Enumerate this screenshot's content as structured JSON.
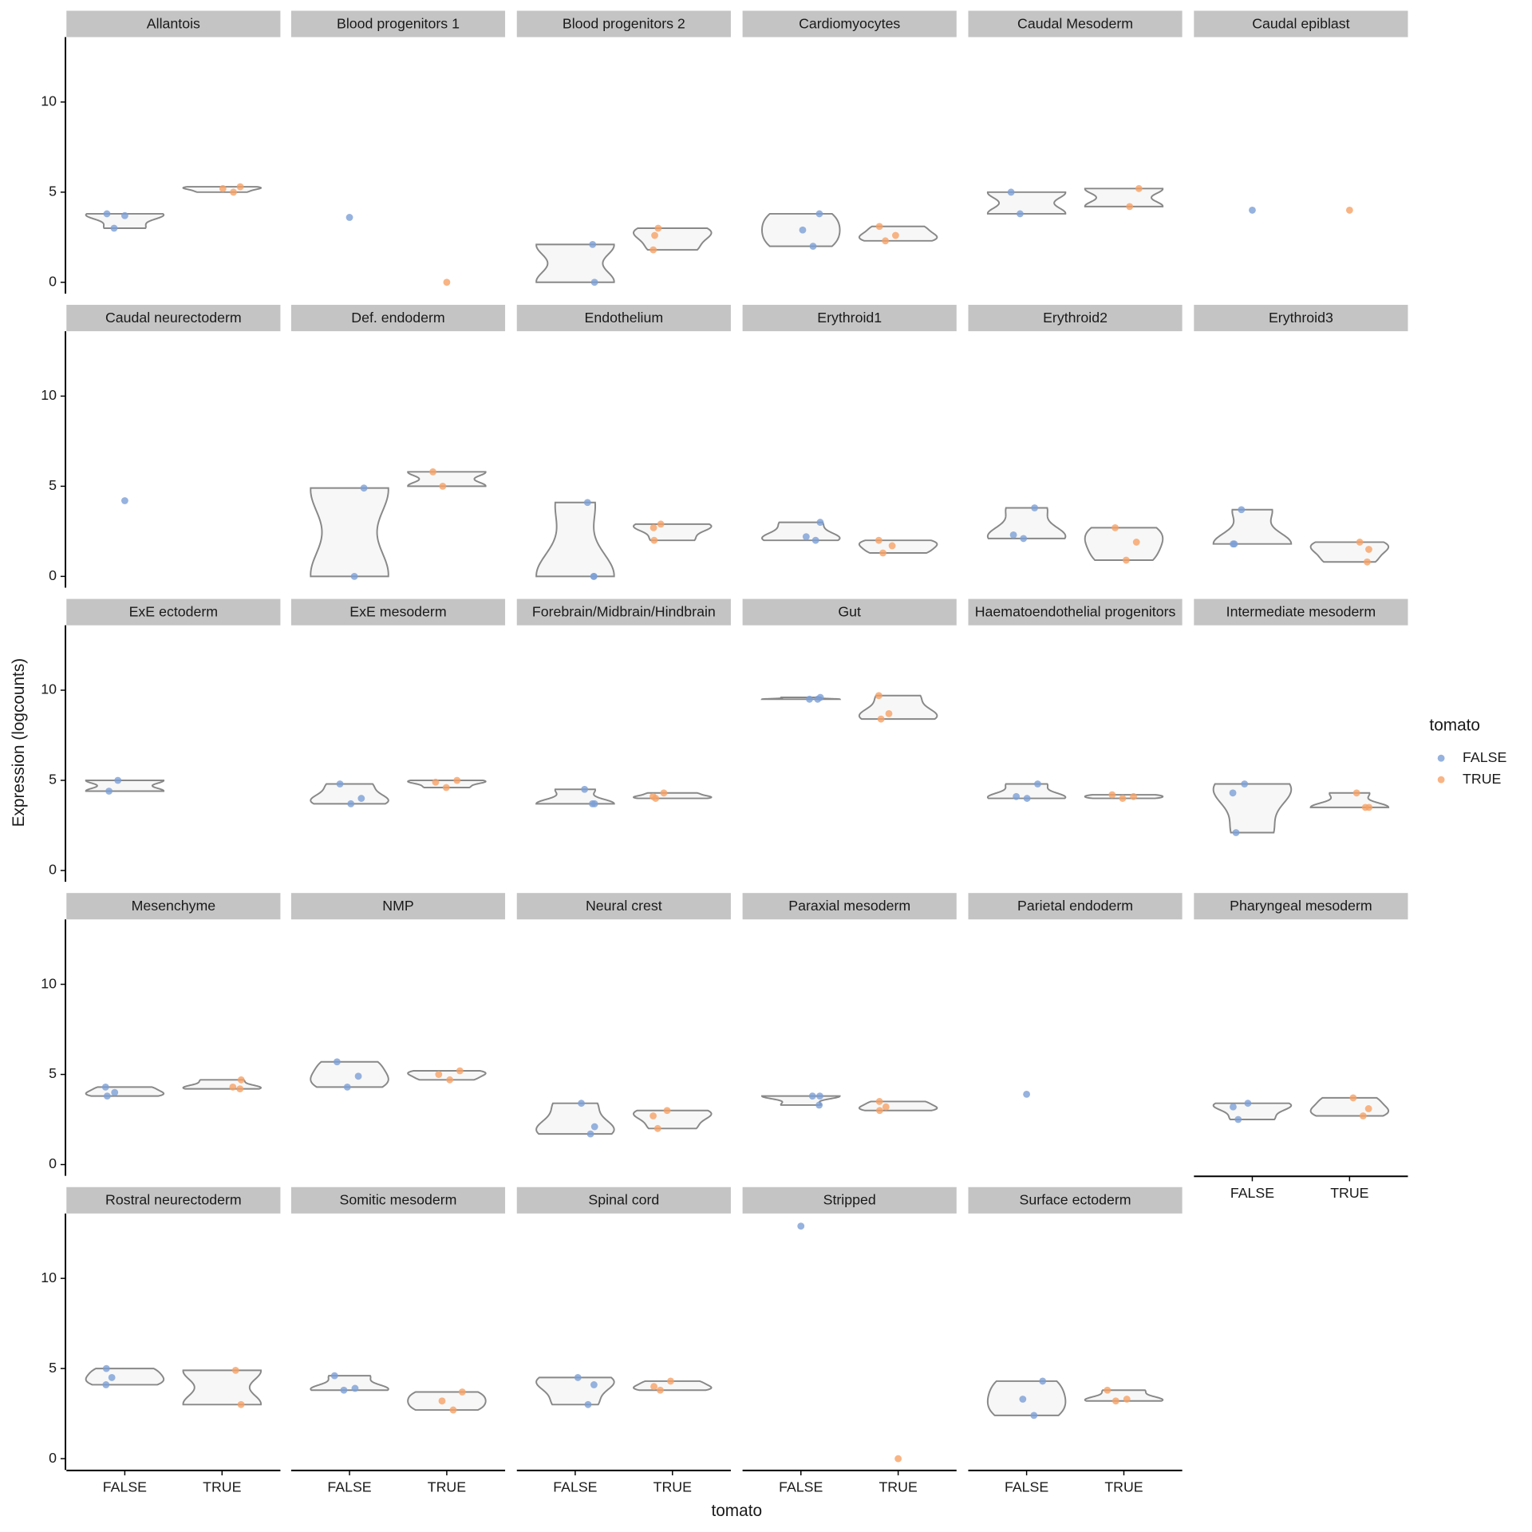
{
  "chart_data": {
    "type": "violin",
    "x_label": "tomato",
    "y_label": "Expression (logcounts)",
    "legend_title": "tomato",
    "categories": [
      "FALSE",
      "TRUE"
    ],
    "series": [
      {
        "name": "FALSE",
        "color": "#7c9fd6"
      },
      {
        "name": "TRUE",
        "color": "#f6a165"
      }
    ],
    "ylim": [
      -0.6,
      13.6
    ],
    "yticks": [
      0,
      5,
      10
    ],
    "facets": [
      {
        "title": "Allantois",
        "values": [
          [
            3.7,
            3.0,
            3.8
          ],
          [
            5.2,
            5.0,
            5.3
          ]
        ]
      },
      {
        "title": "Blood progenitors 1",
        "values": [
          [
            3.6
          ],
          [
            0
          ]
        ]
      },
      {
        "title": "Blood progenitors 2",
        "values": [
          [
            2.1,
            0
          ],
          [
            2.6,
            1.8,
            3.0
          ]
        ]
      },
      {
        "title": "Cardiomyocytes",
        "values": [
          [
            2.9,
            2.0,
            3.8
          ],
          [
            2.6,
            2.3,
            3.1
          ]
        ]
      },
      {
        "title": "Caudal Mesoderm",
        "values": [
          [
            5.0,
            3.8
          ],
          [
            5.2,
            4.2
          ]
        ]
      },
      {
        "title": "Caudal epiblast",
        "values": [
          [
            4.0
          ],
          [
            4.0
          ]
        ]
      },
      {
        "title": "Caudal neurectoderm",
        "values": [
          [
            4.2
          ],
          []
        ]
      },
      {
        "title": "Def. endoderm",
        "values": [
          [
            4.9,
            0
          ],
          [
            5.8,
            5.0
          ]
        ]
      },
      {
        "title": "Endothelium",
        "values": [
          [
            0,
            0,
            4.1
          ],
          [
            2.7,
            2.0,
            2.9
          ]
        ]
      },
      {
        "title": "Erythroid1",
        "values": [
          [
            2.2,
            2.0,
            3.0
          ],
          [
            1.7,
            1.3,
            2.0
          ]
        ]
      },
      {
        "title": "Erythroid2",
        "values": [
          [
            2.3,
            2.1,
            3.8
          ],
          [
            1.9,
            0.9,
            2.7
          ]
        ]
      },
      {
        "title": "Erythroid3",
        "values": [
          [
            1.8,
            1.8,
            3.7
          ],
          [
            1.5,
            0.8,
            1.9
          ]
        ]
      },
      {
        "title": "ExE ectoderm",
        "values": [
          [
            5.0,
            4.4
          ],
          []
        ]
      },
      {
        "title": "ExE mesoderm",
        "values": [
          [
            4.0,
            3.7,
            4.8
          ],
          [
            4.9,
            4.6,
            5.0
          ]
        ]
      },
      {
        "title": "Forebrain/Midbrain/Hindbrain",
        "values": [
          [
            3.7,
            3.7,
            4.5
          ],
          [
            4.1,
            4.0,
            4.3
          ]
        ]
      },
      {
        "title": "Gut",
        "values": [
          [
            9.5,
            9.5,
            9.6
          ],
          [
            8.7,
            8.4,
            9.7
          ]
        ]
      },
      {
        "title": "Haematoendothelial progenitors",
        "values": [
          [
            4.1,
            4.0,
            4.8
          ],
          [
            4.1,
            4.0,
            4.2
          ]
        ]
      },
      {
        "title": "Intermediate mesoderm",
        "values": [
          [
            4.3,
            2.1,
            4.8
          ],
          [
            3.5,
            3.5,
            4.3
          ]
        ]
      },
      {
        "title": "Mesenchyme",
        "values": [
          [
            4.0,
            3.8,
            4.3
          ],
          [
            4.3,
            4.2,
            4.7
          ]
        ]
      },
      {
        "title": "NMP",
        "values": [
          [
            4.9,
            4.3,
            5.7
          ],
          [
            5.0,
            4.7,
            5.2
          ]
        ]
      },
      {
        "title": "Neural crest",
        "values": [
          [
            2.1,
            1.7,
            3.4
          ],
          [
            2.7,
            2.0,
            3.0
          ]
        ]
      },
      {
        "title": "Paraxial mesoderm",
        "values": [
          [
            3.8,
            3.3,
            3.8
          ],
          [
            3.2,
            3.0,
            3.5
          ]
        ]
      },
      {
        "title": "Parietal endoderm",
        "values": [
          [
            3.9
          ],
          []
        ]
      },
      {
        "title": "Pharyngeal mesoderm",
        "values": [
          [
            3.2,
            2.5,
            3.4
          ],
          [
            3.1,
            2.7,
            3.7
          ]
        ]
      },
      {
        "title": "Rostral neurectoderm",
        "values": [
          [
            4.5,
            4.1,
            5.0
          ],
          [
            4.9,
            3.0
          ]
        ]
      },
      {
        "title": "Somitic mesoderm",
        "values": [
          [
            3.9,
            3.8,
            4.6
          ],
          [
            3.2,
            2.7,
            3.7
          ]
        ]
      },
      {
        "title": "Spinal cord",
        "values": [
          [
            4.1,
            3.0,
            4.5
          ],
          [
            4.0,
            3.8,
            4.3
          ]
        ]
      },
      {
        "title": "Stripped",
        "values": [
          [
            12.9
          ],
          [
            0
          ]
        ]
      },
      {
        "title": "Surface ectoderm",
        "values": [
          [
            3.3,
            2.4,
            4.3
          ],
          [
            3.3,
            3.2,
            3.8
          ]
        ]
      }
    ]
  }
}
